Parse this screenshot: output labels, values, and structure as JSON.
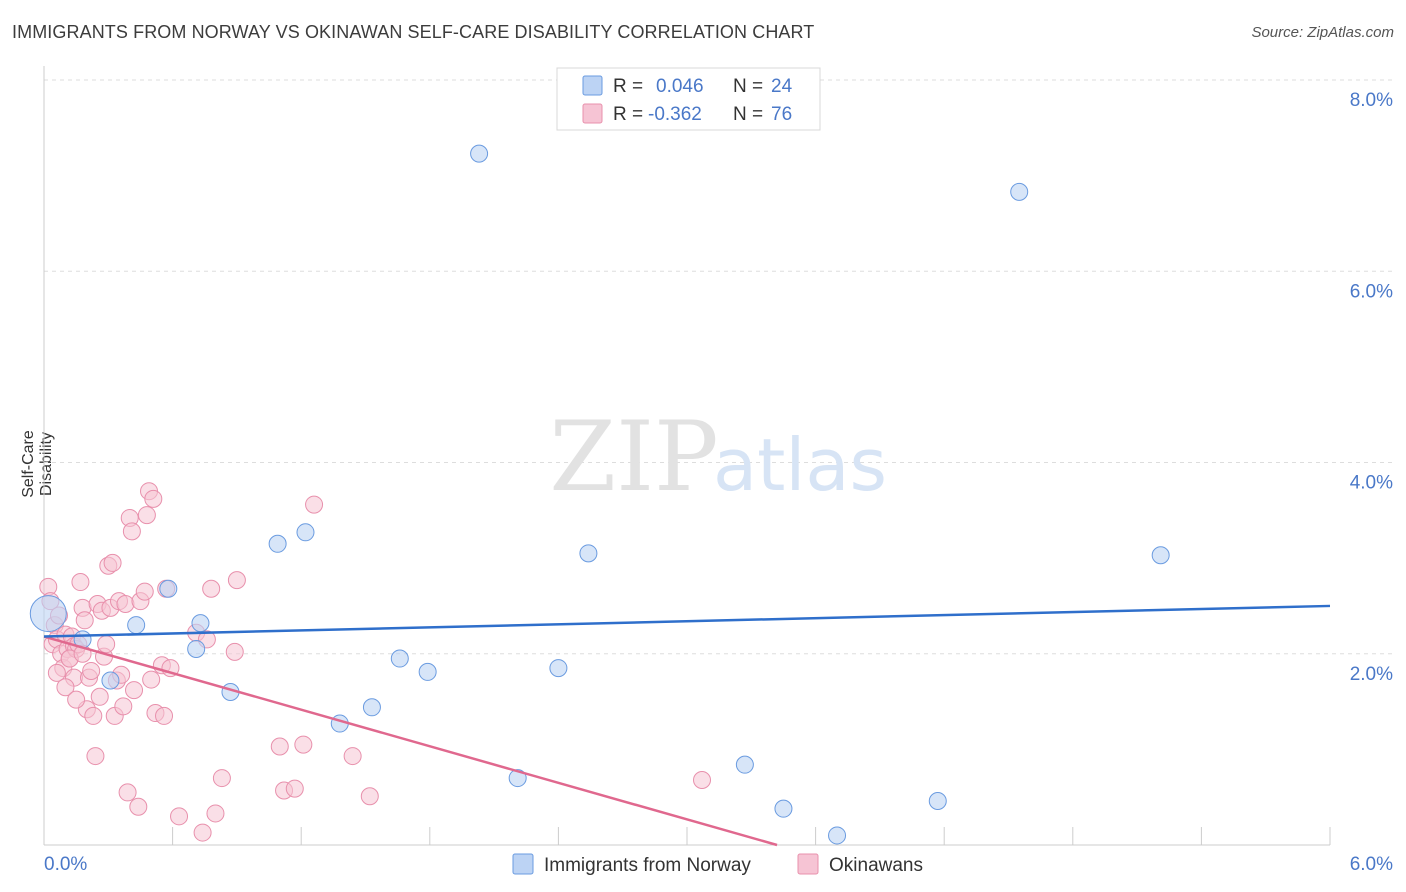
{
  "header": {
    "title": "IMMIGRANTS FROM NORWAY VS OKINAWAN SELF-CARE DISABILITY CORRELATION CHART",
    "source": "Source: ZipAtlas.com"
  },
  "colors": {
    "norway": "#6a9be0",
    "norway_fill": "#bcd3f4",
    "norway_line": "#2f6fcb",
    "okinawa": "#e890ac",
    "okinawa_fill": "#f6c4d4",
    "okinawa_line": "#e0688e",
    "axis_text": "#4a78c8",
    "grid": "#dddddd"
  },
  "legend": {
    "norway": {
      "r_label": "R =",
      "r_value": "0.046",
      "n_label": "N =",
      "n_value": "24"
    },
    "okinawa": {
      "r_label": "R =",
      "r_value": "-0.362",
      "n_label": "N =",
      "n_value": "76"
    }
  },
  "watermark": {
    "zip": "ZIP",
    "atlas": "atlas"
  },
  "chart_data": {
    "type": "scatter",
    "title": "IMMIGRANTS FROM NORWAY VS OKINAWAN SELF-CARE DISABILITY CORRELATION CHART",
    "xlabel": "",
    "ylabel": "Self-Care Disability",
    "xlim": [
      0,
      6.0
    ],
    "ylim": [
      0,
      8.0
    ],
    "x_tick_labels": [
      "0.0%",
      "6.0%"
    ],
    "y_ticks": [
      2.0,
      4.0,
      6.0,
      8.0
    ],
    "y_tick_labels": [
      "2.0%",
      "4.0%",
      "6.0%",
      "8.0%"
    ],
    "grid": true,
    "legend_position": "top-center",
    "series": [
      {
        "name": "Immigrants from Norway",
        "points": [
          [
            0.02,
            2.42
          ],
          [
            0.18,
            2.15
          ],
          [
            0.31,
            1.72
          ],
          [
            0.43,
            2.3
          ],
          [
            0.58,
            2.68
          ],
          [
            0.71,
            2.05
          ],
          [
            0.73,
            2.32
          ],
          [
            0.87,
            1.6
          ],
          [
            1.09,
            3.15
          ],
          [
            1.22,
            3.27
          ],
          [
            1.38,
            1.27
          ],
          [
            1.53,
            1.44
          ],
          [
            1.66,
            1.95
          ],
          [
            1.79,
            1.81
          ],
          [
            2.03,
            7.23
          ],
          [
            2.21,
            0.7
          ],
          [
            2.4,
            1.85
          ],
          [
            2.54,
            3.05
          ],
          [
            3.27,
            0.84
          ],
          [
            3.45,
            0.38
          ],
          [
            3.7,
            0.1
          ],
          [
            4.17,
            0.46
          ],
          [
            4.55,
            6.83
          ],
          [
            5.21,
            3.03
          ]
        ],
        "trend": [
          [
            0.0,
            2.18
          ],
          [
            6.0,
            2.5
          ]
        ]
      },
      {
        "name": "Okinawans",
        "points": [
          [
            0.02,
            2.7
          ],
          [
            0.03,
            2.55
          ],
          [
            0.04,
            2.1
          ],
          [
            0.05,
            2.3
          ],
          [
            0.06,
            2.15
          ],
          [
            0.08,
            2.0
          ],
          [
            0.09,
            1.85
          ],
          [
            0.1,
            2.2
          ],
          [
            0.11,
            2.05
          ],
          [
            0.12,
            1.95
          ],
          [
            0.13,
            2.18
          ],
          [
            0.14,
            2.08
          ],
          [
            0.14,
            1.75
          ],
          [
            0.15,
            2.05
          ],
          [
            0.16,
            2.1
          ],
          [
            0.17,
            2.75
          ],
          [
            0.18,
            2.48
          ],
          [
            0.19,
            2.35
          ],
          [
            0.2,
            1.42
          ],
          [
            0.21,
            1.75
          ],
          [
            0.22,
            1.82
          ],
          [
            0.23,
            1.35
          ],
          [
            0.24,
            0.93
          ],
          [
            0.25,
            2.52
          ],
          [
            0.26,
            1.55
          ],
          [
            0.27,
            2.45
          ],
          [
            0.28,
            1.97
          ],
          [
            0.29,
            2.1
          ],
          [
            0.3,
            2.92
          ],
          [
            0.31,
            2.48
          ],
          [
            0.32,
            2.95
          ],
          [
            0.33,
            1.35
          ],
          [
            0.34,
            1.72
          ],
          [
            0.35,
            2.55
          ],
          [
            0.36,
            1.78
          ],
          [
            0.37,
            1.45
          ],
          [
            0.38,
            2.52
          ],
          [
            0.39,
            0.55
          ],
          [
            0.4,
            3.42
          ],
          [
            0.41,
            3.28
          ],
          [
            0.42,
            1.62
          ],
          [
            0.44,
            0.4
          ],
          [
            0.45,
            2.55
          ],
          [
            0.47,
            2.65
          ],
          [
            0.48,
            3.45
          ],
          [
            0.49,
            3.7
          ],
          [
            0.5,
            1.73
          ],
          [
            0.51,
            3.62
          ],
          [
            0.52,
            1.38
          ],
          [
            0.55,
            1.88
          ],
          [
            0.56,
            1.35
          ],
          [
            0.57,
            2.68
          ],
          [
            0.59,
            1.85
          ],
          [
            0.63,
            0.3
          ],
          [
            0.71,
            2.22
          ],
          [
            0.74,
            0.13
          ],
          [
            0.76,
            2.15
          ],
          [
            0.78,
            2.68
          ],
          [
            0.8,
            0.33
          ],
          [
            0.83,
            0.7
          ],
          [
            0.89,
            2.02
          ],
          [
            0.9,
            2.77
          ],
          [
            1.1,
            1.03
          ],
          [
            1.12,
            0.57
          ],
          [
            1.17,
            0.59
          ],
          [
            1.21,
            1.05
          ],
          [
            1.26,
            3.56
          ],
          [
            1.44,
            0.93
          ],
          [
            1.52,
            0.51
          ],
          [
            3.07,
            0.68
          ],
          [
            0.06,
            1.8
          ],
          [
            0.07,
            2.4
          ],
          [
            0.1,
            1.65
          ],
          [
            0.12,
            1.95
          ],
          [
            0.15,
            1.52
          ],
          [
            0.18,
            2.0
          ]
        ],
        "trend": [
          [
            0.0,
            2.18
          ],
          [
            3.42,
            0.0
          ]
        ]
      }
    ]
  },
  "bottom_legend": {
    "norway_label": "Immigrants from Norway",
    "okinawa_label": "Okinawans"
  }
}
